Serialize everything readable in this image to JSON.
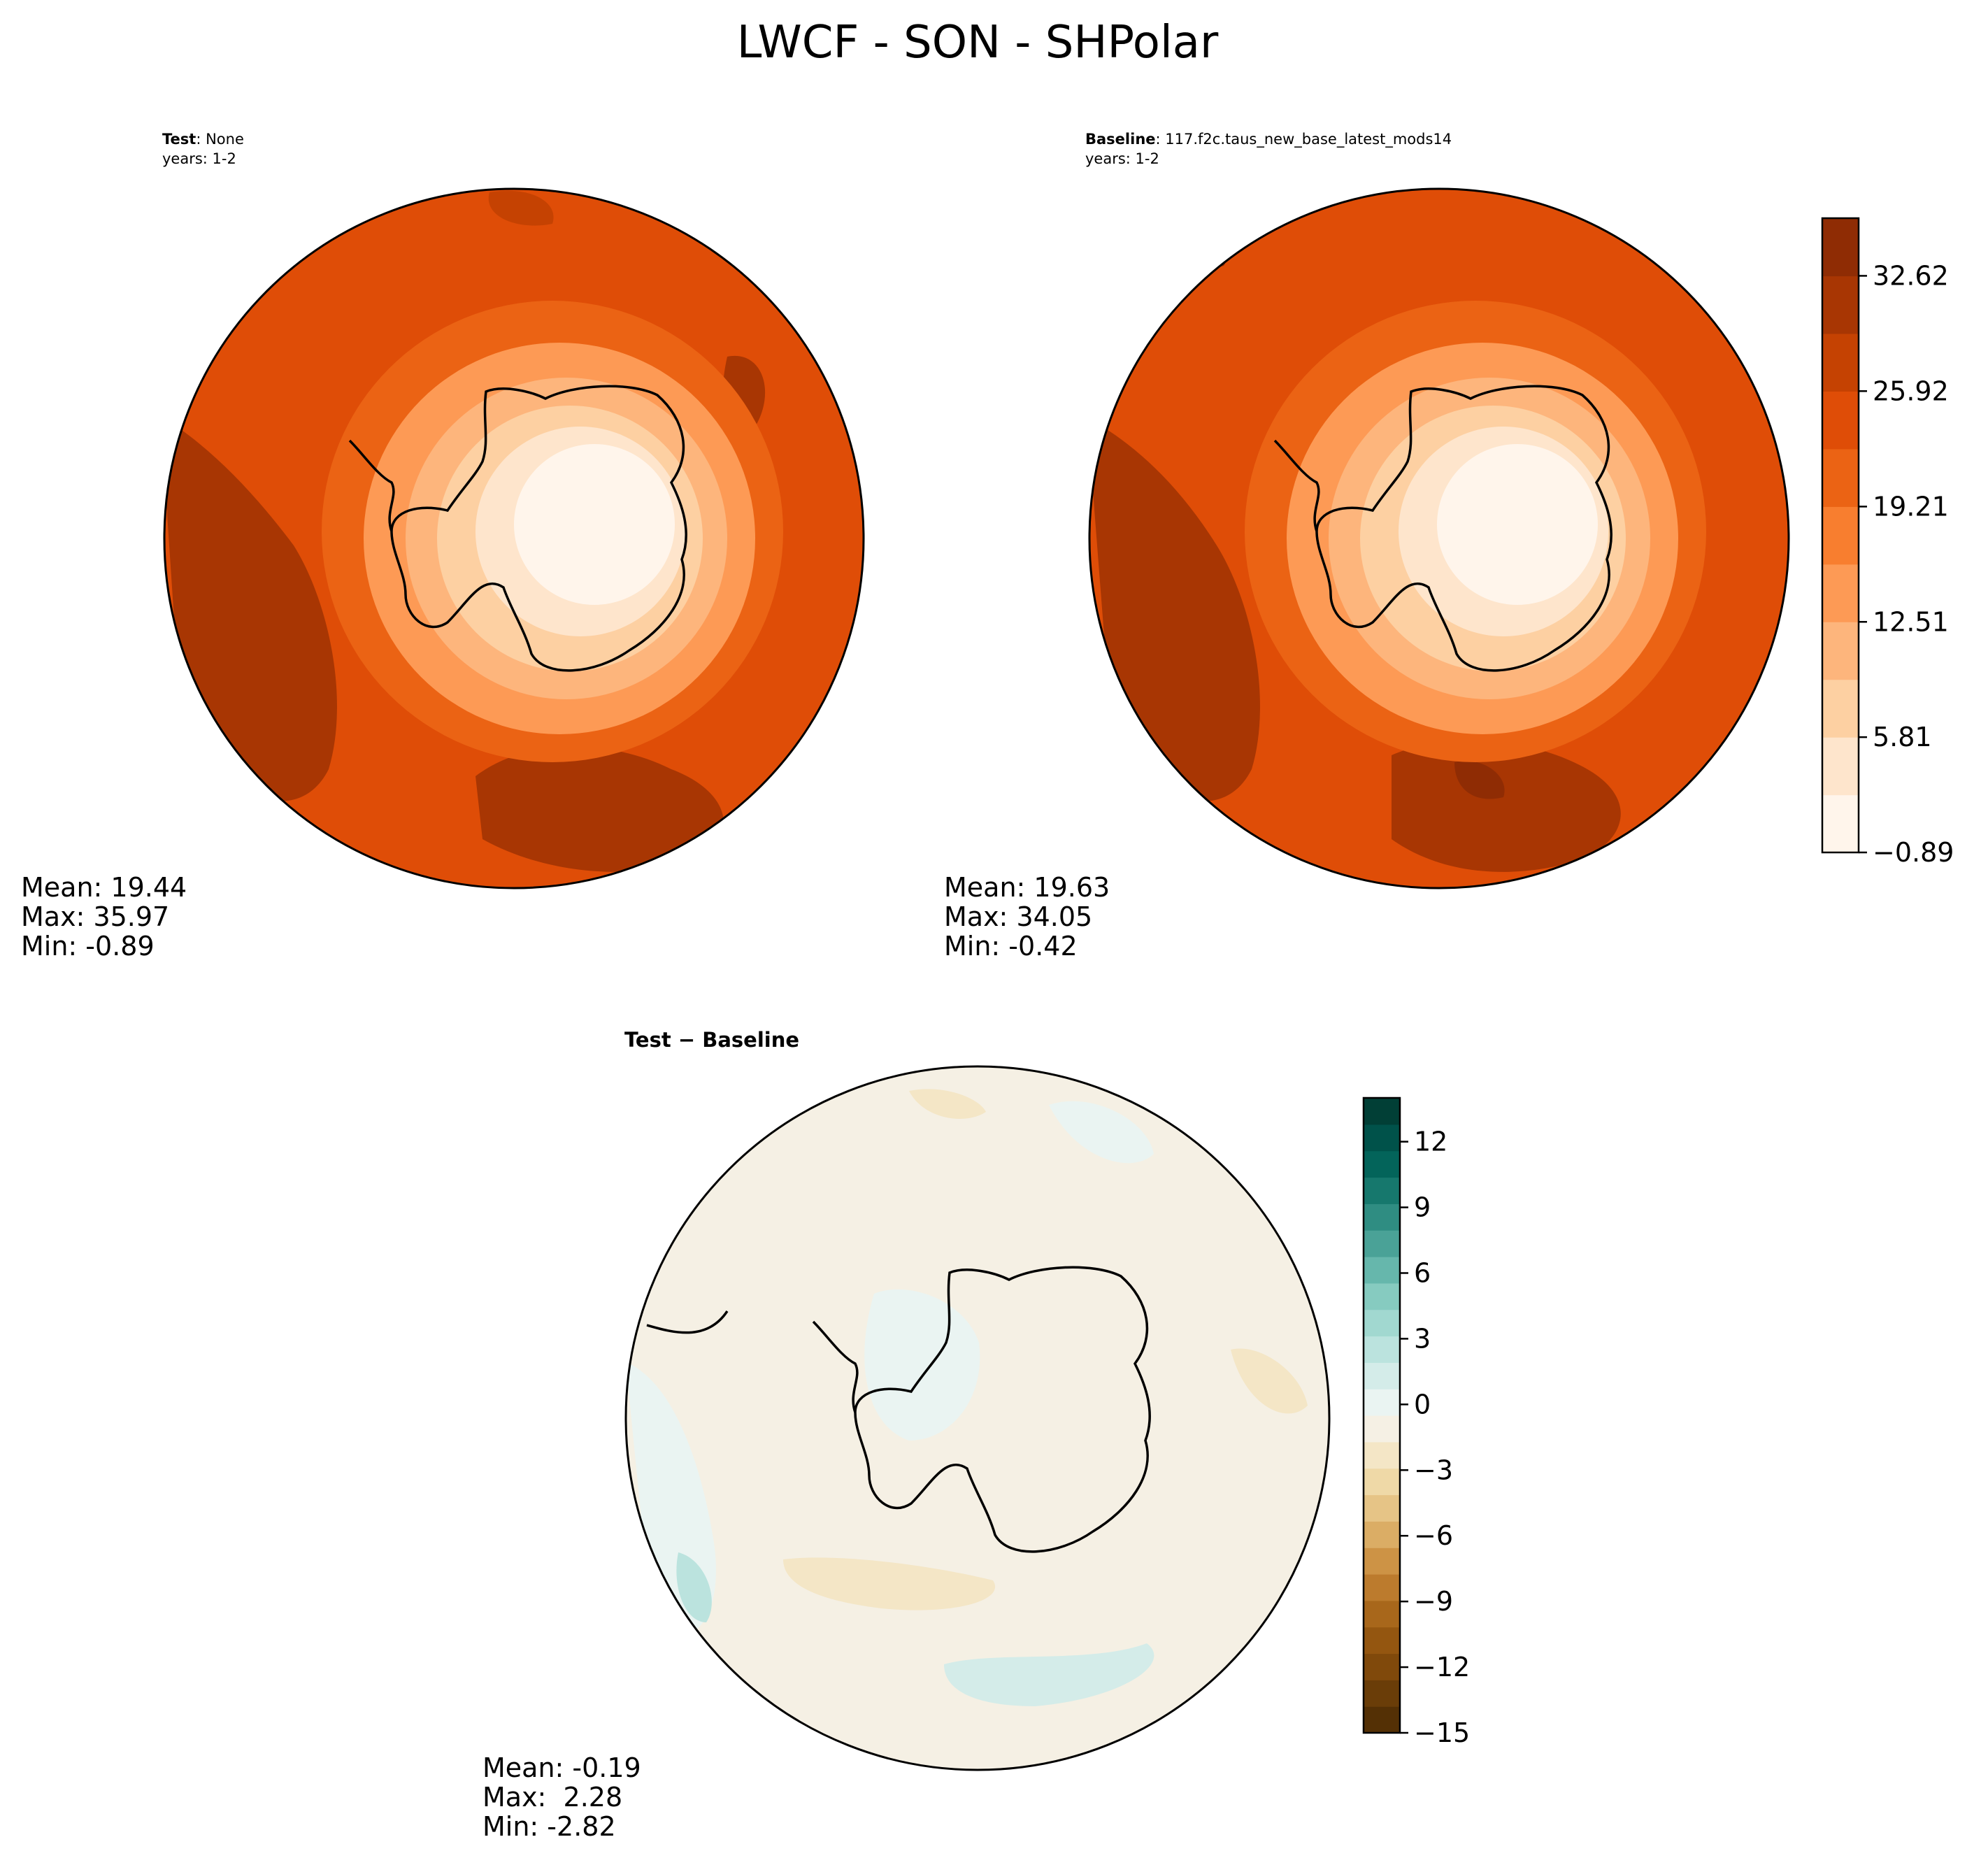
{
  "figure": {
    "title": "LWCF - SON - SHPolar"
  },
  "chart_data": [
    {
      "type": "heatmap",
      "projection": "south-polar-stereographic",
      "header_bold": "Test",
      "header_text": ": None",
      "years": "years: 1-2",
      "stats": {
        "mean": "Mean: 19.44",
        "max": "Max: 35.97",
        "min": "Min: -0.89"
      },
      "colormap": "Oranges",
      "contour_levels": [
        -0.89,
        2.46,
        5.81,
        9.16,
        12.51,
        15.86,
        19.21,
        22.56,
        25.92,
        29.27,
        32.62,
        35.97
      ],
      "ice_region_range": [
        -0.89,
        5.81
      ],
      "ocean_typical_range": [
        22.56,
        32.62
      ]
    },
    {
      "type": "heatmap",
      "projection": "south-polar-stereographic",
      "header_bold": "Baseline",
      "header_text": ": 117.f2c.taus_new_base_latest_mods14",
      "years": "years: 1-2",
      "stats": {
        "mean": "Mean: 19.63",
        "max": "Max: 34.05",
        "min": "Min: -0.42"
      },
      "colormap": "Oranges",
      "colorbar": {
        "tick_labels": [
          "32.62",
          "25.92",
          "19.21",
          "12.51",
          "5.81",
          "−0.89"
        ],
        "tick_values": [
          32.62,
          25.92,
          19.21,
          12.51,
          5.81,
          -0.89
        ],
        "range": [
          -0.89,
          35.97
        ],
        "colors": [
          "#fff5eb",
          "#fee5cc",
          "#fdd0a2",
          "#fdb57c",
          "#fd9a55",
          "#f87e2f",
          "#eb6314",
          "#df4d07",
          "#c54202",
          "#a83603",
          "#8f2c04"
        ]
      }
    },
    {
      "type": "heatmap",
      "projection": "south-polar-stereographic",
      "header": "Test − Baseline",
      "stats": {
        "mean": "Mean: -0.19",
        "max": "Max:  2.28",
        "min": "Min: -2.82"
      },
      "colormap": "BrBG",
      "colorbar": {
        "tick_labels": [
          "12",
          "9",
          "6",
          "3",
          "0",
          "−3",
          "−6",
          "−9",
          "−12",
          "−15"
        ],
        "tick_values": [
          12,
          9,
          6,
          3,
          0,
          -3,
          -6,
          -9,
          -12,
          -15
        ],
        "range": [
          -15,
          14
        ],
        "colors": [
          "#543005",
          "#6a3d08",
          "#80490b",
          "#945610",
          "#a8671b",
          "#bc7b2d",
          "#cd9345",
          "#dbad65",
          "#e6c486",
          "#efd9a7",
          "#f4e6c6",
          "#f5f0e4",
          "#eaf4f2",
          "#d4ece9",
          "#bbe3de",
          "#a1d8d0",
          "#86cbc0",
          "#66b7ac",
          "#4aa297",
          "#2f8d82",
          "#16786d",
          "#03645a",
          "#00524a",
          "#013f36"
        ]
      }
    }
  ]
}
